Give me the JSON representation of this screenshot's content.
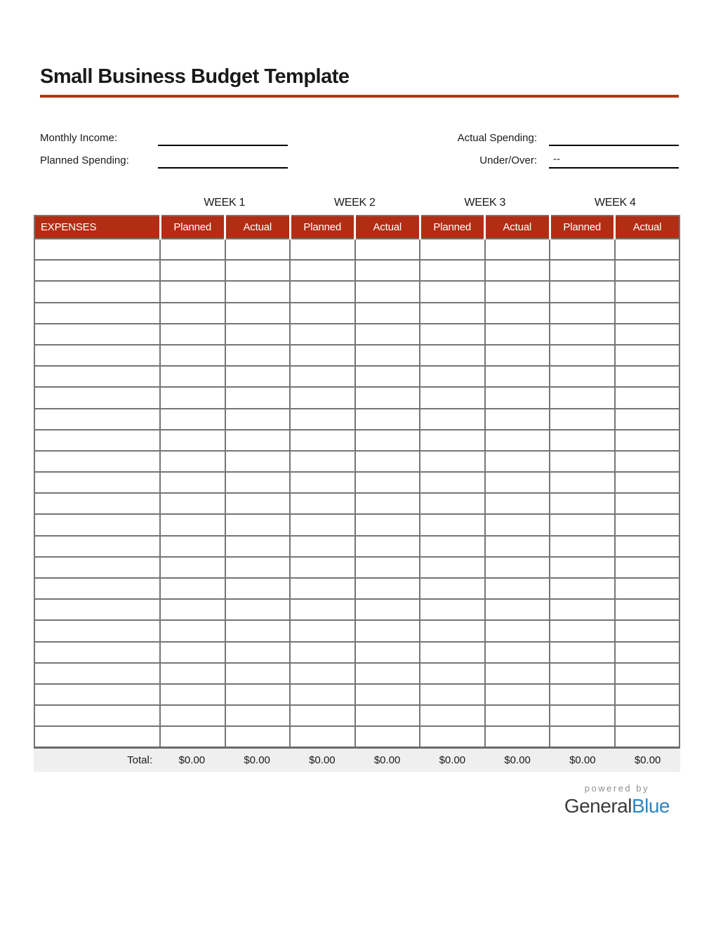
{
  "page": {
    "title": "Small Business Budget Template"
  },
  "summary": {
    "monthly_income_label": "Monthly Income:",
    "monthly_income_value": "",
    "planned_spending_label": "Planned Spending:",
    "planned_spending_value": "",
    "actual_spending_label": "Actual Spending:",
    "actual_spending_value": "",
    "under_over_label": "Under/Over:",
    "under_over_value": "--"
  },
  "weeks": [
    "WEEK 1",
    "WEEK 2",
    "WEEK 3",
    "WEEK 4"
  ],
  "table": {
    "expenses_header": "EXPENSES",
    "sub_headers": [
      "Planned",
      "Actual",
      "Planned",
      "Actual",
      "Planned",
      "Actual",
      "Planned",
      "Actual"
    ],
    "empty_row_count": 24,
    "columns_per_row": 9
  },
  "totals": {
    "label": "Total:",
    "values": [
      "$0.00",
      "$0.00",
      "$0.00",
      "$0.00",
      "$0.00",
      "$0.00",
      "$0.00",
      "$0.00"
    ]
  },
  "footer": {
    "powered_by": "powered by",
    "brand_general": "General",
    "brand_blue": "Blue"
  },
  "colors": {
    "header_red": "#B22D14",
    "accent_underline": "#B23513",
    "grid_border": "#757575",
    "total_row_bg": "#EFEFEF",
    "brand_blue": "#2C85C7"
  }
}
